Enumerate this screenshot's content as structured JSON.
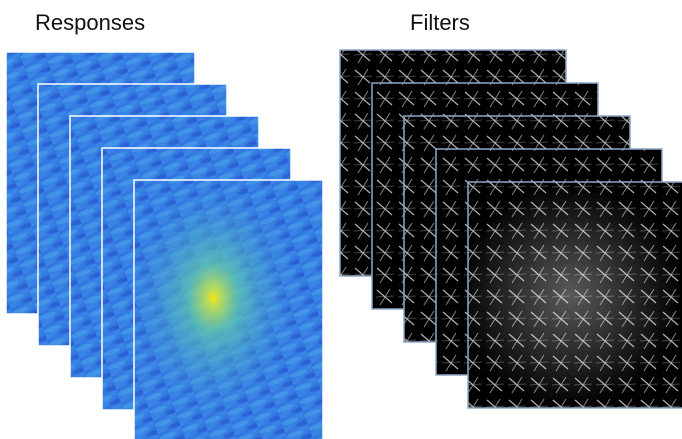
{
  "labels": {
    "responses": "Responses",
    "filters": "Filters"
  }
}
